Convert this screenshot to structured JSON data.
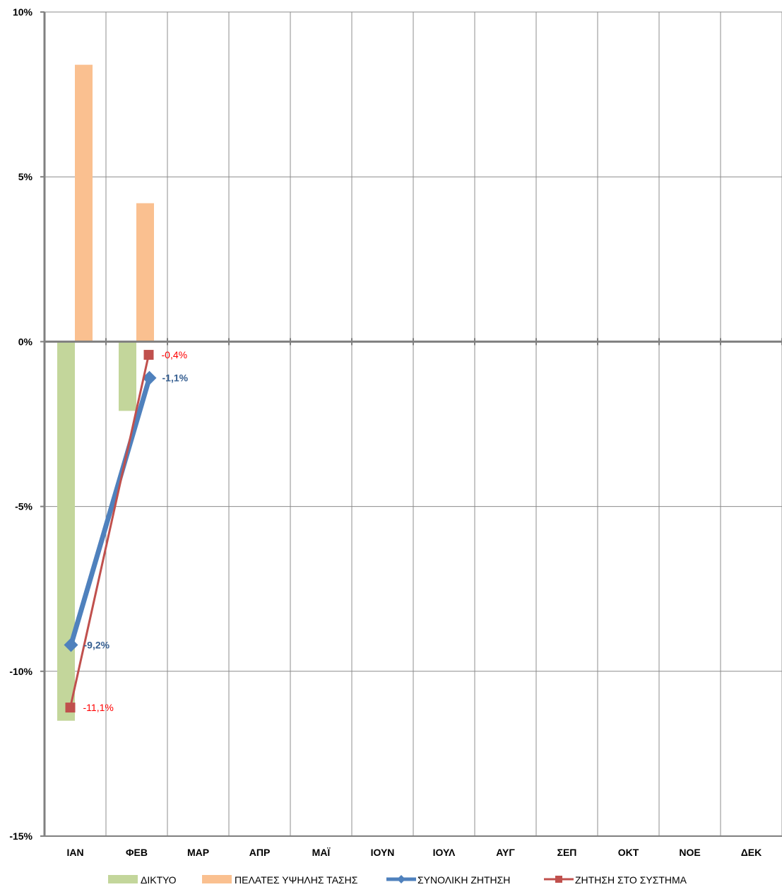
{
  "chart_data": {
    "type": "bar",
    "categories": [
      "ΙΑΝ",
      "ΦΕΒ",
      "ΜΑΡ",
      "ΑΠΡ",
      "ΜΑΪ",
      "ΙΟΥΝ",
      "ΙΟΥΛ",
      "ΑΥΓ",
      "ΣΕΠ",
      "ΟΚΤ",
      "ΝΟΕ",
      "ΔΕΚ"
    ],
    "ylim": [
      -15,
      10
    ],
    "yticks": [
      10,
      5,
      0,
      -5,
      -10,
      -15
    ],
    "ytick_labels": [
      "10%",
      "5%",
      "0%",
      "-5%",
      "-10%",
      "-15%"
    ],
    "grid": true,
    "legend_position": "bottom",
    "bar_series": [
      {
        "name": "ΔΙΚΤΥΟ",
        "color": "#C3D69B",
        "values": [
          -11.5,
          -2.1,
          null,
          null,
          null,
          null,
          null,
          null,
          null,
          null,
          null,
          null
        ]
      },
      {
        "name": "ΠΕΛΑΤΕΣ ΥΨΗΛΗΣ ΤΑΣΗΣ",
        "color": "#FAC090",
        "values": [
          8.4,
          4.2,
          null,
          null,
          null,
          null,
          null,
          null,
          null,
          null,
          null,
          null
        ]
      }
    ],
    "line_series": [
      {
        "name": "ΣΥΝΟΛΙΚΗ ΖΗΤΗΣΗ",
        "color": "#4F81BD",
        "label_color": "#376092",
        "marker": "diamond",
        "values": [
          -9.2,
          -1.1,
          null,
          null,
          null,
          null,
          null,
          null,
          null,
          null,
          null,
          null
        ],
        "labels": [
          "-9,2%",
          "-1,1%"
        ]
      },
      {
        "name": "ΖΗΤΗΣΗ ΣΤΟ ΣΥΣΤΗΜΑ",
        "color": "#C0504D",
        "label_color": "#FF0000",
        "marker": "square",
        "values": [
          -11.1,
          -0.4,
          null,
          null,
          null,
          null,
          null,
          null,
          null,
          null,
          null,
          null
        ],
        "labels": [
          "-11,1%",
          "-0,4%"
        ]
      }
    ]
  }
}
